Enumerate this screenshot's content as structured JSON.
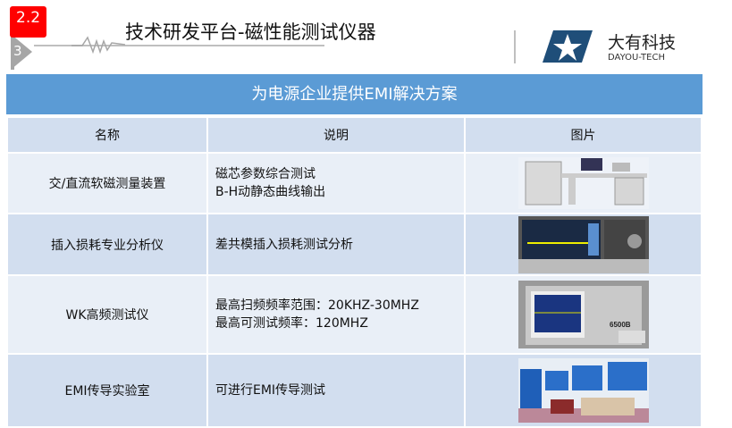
{
  "header": {
    "section_number": "2.2",
    "sub_number": "3",
    "title": "技术研发平台-磁性能测试仪器",
    "logo": {
      "name": "大有科技",
      "subtitle": "DAYOU-TECH",
      "color": "#1f4e79"
    }
  },
  "banner": {
    "title": "为电源企业提供EMI解决方案",
    "color": "#5b9bd5"
  },
  "table": {
    "headers": [
      "名称",
      "说明",
      "图片"
    ],
    "rows": [
      {
        "name": "交/直流软磁测量装置",
        "desc": [
          "磁芯参数综合测试",
          "B-H动静态曲线输出"
        ],
        "image": "bh-test-bench-photo"
      },
      {
        "name": "插入损耗专业分析仪",
        "desc": [
          "差共模插入损耗测试分析"
        ],
        "image": "spectrum-analyzer-photo"
      },
      {
        "name": "WK高频测试仪",
        "desc": [
          "最高扫频频率范围：20KHZ-30MHZ",
          "最高可测试频率：120MHZ"
        ],
        "image": "wk-6500b-analyzer-photo"
      },
      {
        "name": "EMI传导实验室",
        "desc": [
          "可进行EMI传导测试"
        ],
        "image": "emi-lab-photo"
      }
    ]
  }
}
